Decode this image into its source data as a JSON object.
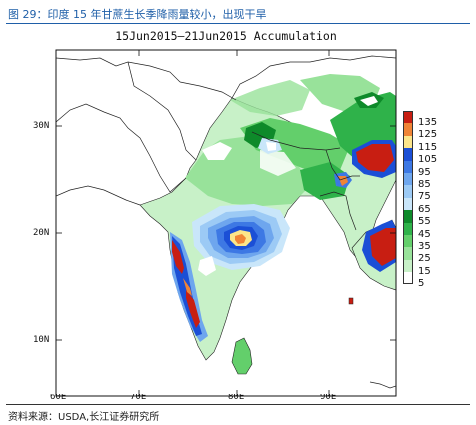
{
  "header": {
    "caption": "图 29：印度 15 年甘蔗生长季降雨量较小，出现干旱"
  },
  "map": {
    "title": "15Jun2015—21Jun2015 Accumulation",
    "lat_labels": [
      "30N",
      "20N",
      "10N"
    ],
    "lon_labels": [
      "60E",
      "70E",
      "80E",
      "90E"
    ]
  },
  "legend": {
    "items": [
      {
        "label": "135",
        "color": "#c81e12"
      },
      {
        "label": "125",
        "color": "#f08436"
      },
      {
        "label": "115",
        "color": "#fce58a"
      },
      {
        "label": "105",
        "color": "#1b4fd6"
      },
      {
        "label": "95",
        "color": "#3d78e4"
      },
      {
        "label": "85",
        "color": "#6ea6ee"
      },
      {
        "label": "75",
        "color": "#9ccaf5"
      },
      {
        "label": "65",
        "color": "#c9e6fa"
      },
      {
        "label": "55",
        "color": "#0e8a2a"
      },
      {
        "label": "45",
        "color": "#2fb24a"
      },
      {
        "label": "35",
        "color": "#63cf6b"
      },
      {
        "label": "25",
        "color": "#98e29a"
      },
      {
        "label": "15",
        "color": "#c8f1c8"
      },
      {
        "label": "5",
        "color": "#ffffff"
      }
    ]
  },
  "footer": {
    "source": "资料来源：USDA,长江证券研究所"
  }
}
